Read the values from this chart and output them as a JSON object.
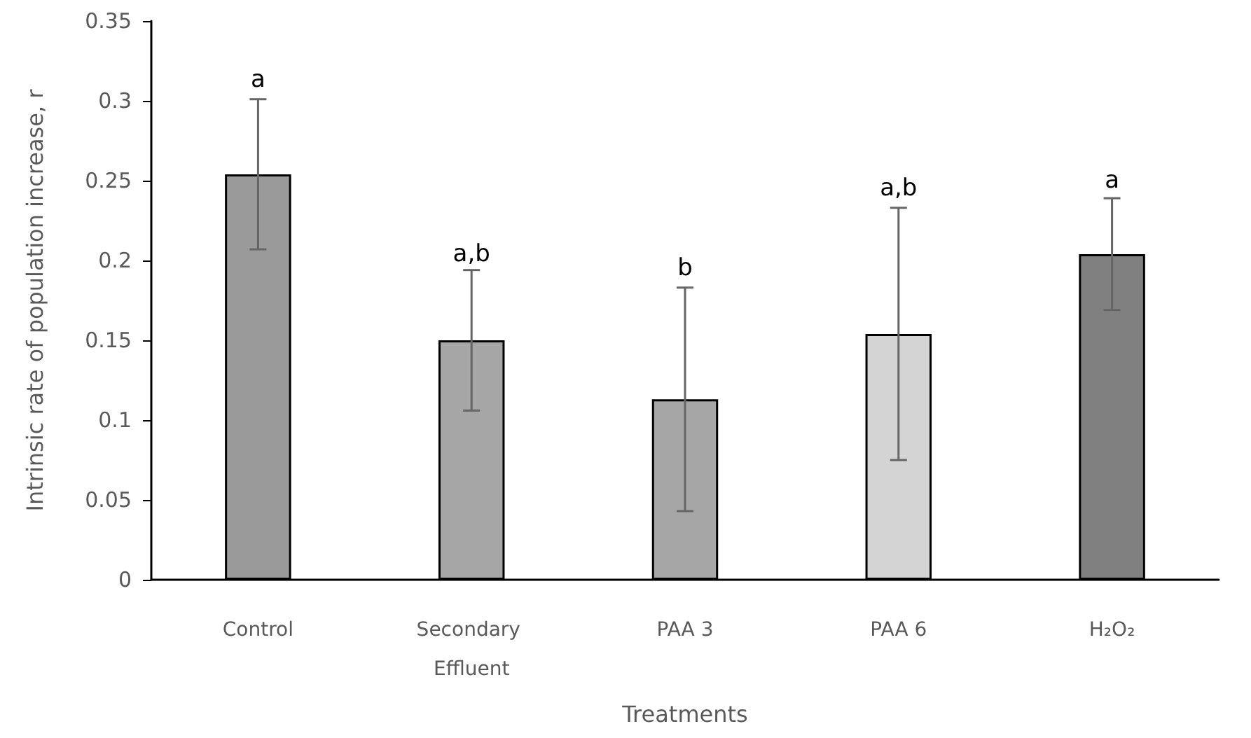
{
  "chart_data": {
    "type": "bar",
    "xlabel": "Treatments",
    "ylabel": "Intrinsic rate of population increase, r",
    "categories": [
      "Control",
      "Secondary Effluent",
      "PAA 3",
      "PAA 6",
      "H₂O₂"
    ],
    "values": [
      0.254,
      0.15,
      0.113,
      0.154,
      0.204
    ],
    "colors": [
      "#9a9a9a",
      "#a6a6a6",
      "#a6a6a6",
      "#d4d4d4",
      "#808080"
    ],
    "errors": [
      0.047,
      0.044,
      0.07,
      0.079,
      0.035
    ],
    "annotations": [
      {
        "text": "a",
        "x": "Control",
        "y": 0.302
      },
      {
        "text": "a,b",
        "x": "Secondary Effluent",
        "y": 0.193
      },
      {
        "text": "b",
        "x": "PAA 3",
        "y": 0.184
      },
      {
        "text": "a,b",
        "x": "PAA 6",
        "y": 0.234
      },
      {
        "text": "a",
        "x": "H₂O₂",
        "y": 0.239
      }
    ],
    "ylim": [
      0,
      0.35
    ],
    "yticks": [
      0,
      0.05,
      0.1,
      0.15,
      0.2,
      0.25,
      0.3,
      0.35
    ],
    "grid": false
  }
}
